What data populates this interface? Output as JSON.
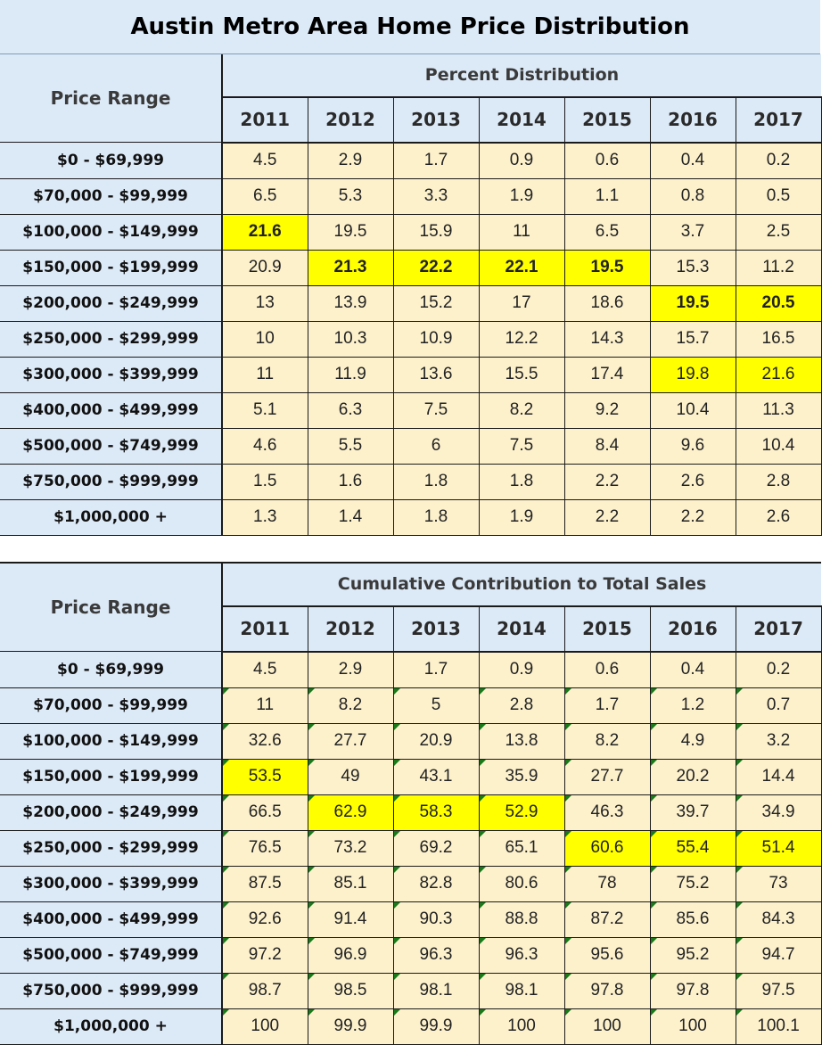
{
  "title": "Austin Metro Area Home Price Distribution",
  "range_label": "Price Range",
  "years": [
    "2011",
    "2012",
    "2013",
    "2014",
    "2015",
    "2016",
    "2017"
  ],
  "ranges": [
    "$0 - $69,999",
    "$70,000 - $99,999",
    "$100,000 - $149,999",
    "$150,000 - $199,999",
    "$200,000 - $249,999",
    "$250,000 - $299,999",
    "$300,000 - $399,999",
    "$400,000 - $499,999",
    "$500,000 - $749,999",
    "$750,000 - $999,999",
    "$1,000,000 +"
  ],
  "highlight_color": "#ffff00",
  "cell_color": "#fdf1cc",
  "header_color": "#dce9f7",
  "percent_distribution": {
    "heading": "Percent Distribution",
    "rows": [
      [
        "4.5",
        "2.9",
        "1.7",
        "0.9",
        "0.6",
        "0.4",
        "0.2"
      ],
      [
        "6.5",
        "5.3",
        "3.3",
        "1.9",
        "1.1",
        "0.8",
        "0.5"
      ],
      [
        "21.6",
        "19.5",
        "15.9",
        "11",
        "6.5",
        "3.7",
        "2.5"
      ],
      [
        "20.9",
        "21.3",
        "22.2",
        "22.1",
        "19.5",
        "15.3",
        "11.2"
      ],
      [
        "13",
        "13.9",
        "15.2",
        "17",
        "18.6",
        "19.5",
        "20.5"
      ],
      [
        "10",
        "10.3",
        "10.9",
        "12.2",
        "14.3",
        "15.7",
        "16.5"
      ],
      [
        "11",
        "11.9",
        "13.6",
        "15.5",
        "17.4",
        "19.8",
        "21.6"
      ],
      [
        "5.1",
        "6.3",
        "7.5",
        "8.2",
        "9.2",
        "10.4",
        "11.3"
      ],
      [
        "4.6",
        "5.5",
        "6",
        "7.5",
        "8.4",
        "9.6",
        "10.4"
      ],
      [
        "1.5",
        "1.6",
        "1.8",
        "1.8",
        "2.2",
        "2.6",
        "2.8"
      ],
      [
        "1.3",
        "1.4",
        "1.8",
        "1.9",
        "2.2",
        "2.2",
        "2.6"
      ]
    ],
    "highlighted_bold": [
      [
        2,
        0
      ],
      [
        3,
        1
      ],
      [
        3,
        2
      ],
      [
        3,
        3
      ],
      [
        3,
        4
      ],
      [
        4,
        5
      ],
      [
        4,
        6
      ]
    ],
    "highlighted_plain": [
      [
        6,
        5
      ],
      [
        6,
        6
      ]
    ]
  },
  "cumulative_contribution": {
    "heading": "Cumulative Contribution to Total Sales",
    "rows": [
      [
        "4.5",
        "2.9",
        "1.7",
        "0.9",
        "0.6",
        "0.4",
        "0.2"
      ],
      [
        "11",
        "8.2",
        "5",
        "2.8",
        "1.7",
        "1.2",
        "0.7"
      ],
      [
        "32.6",
        "27.7",
        "20.9",
        "13.8",
        "8.2",
        "4.9",
        "3.2"
      ],
      [
        "53.5",
        "49",
        "43.1",
        "35.9",
        "27.7",
        "20.2",
        "14.4"
      ],
      [
        "66.5",
        "62.9",
        "58.3",
        "52.9",
        "46.3",
        "39.7",
        "34.9"
      ],
      [
        "76.5",
        "73.2",
        "69.2",
        "65.1",
        "60.6",
        "55.4",
        "51.4"
      ],
      [
        "87.5",
        "85.1",
        "82.8",
        "80.6",
        "78",
        "75.2",
        "73"
      ],
      [
        "92.6",
        "91.4",
        "90.3",
        "88.8",
        "87.2",
        "85.6",
        "84.3"
      ],
      [
        "97.2",
        "96.9",
        "96.3",
        "96.3",
        "95.6",
        "95.2",
        "94.7"
      ],
      [
        "98.7",
        "98.5",
        "98.1",
        "98.1",
        "97.8",
        "97.8",
        "97.5"
      ],
      [
        "100",
        "99.9",
        "99.9",
        "100",
        "100",
        "100",
        "100.1"
      ]
    ],
    "highlighted_plain": [
      [
        3,
        0
      ],
      [
        4,
        1
      ],
      [
        4,
        2
      ],
      [
        4,
        3
      ],
      [
        5,
        4
      ],
      [
        5,
        5
      ],
      [
        5,
        6
      ]
    ]
  }
}
